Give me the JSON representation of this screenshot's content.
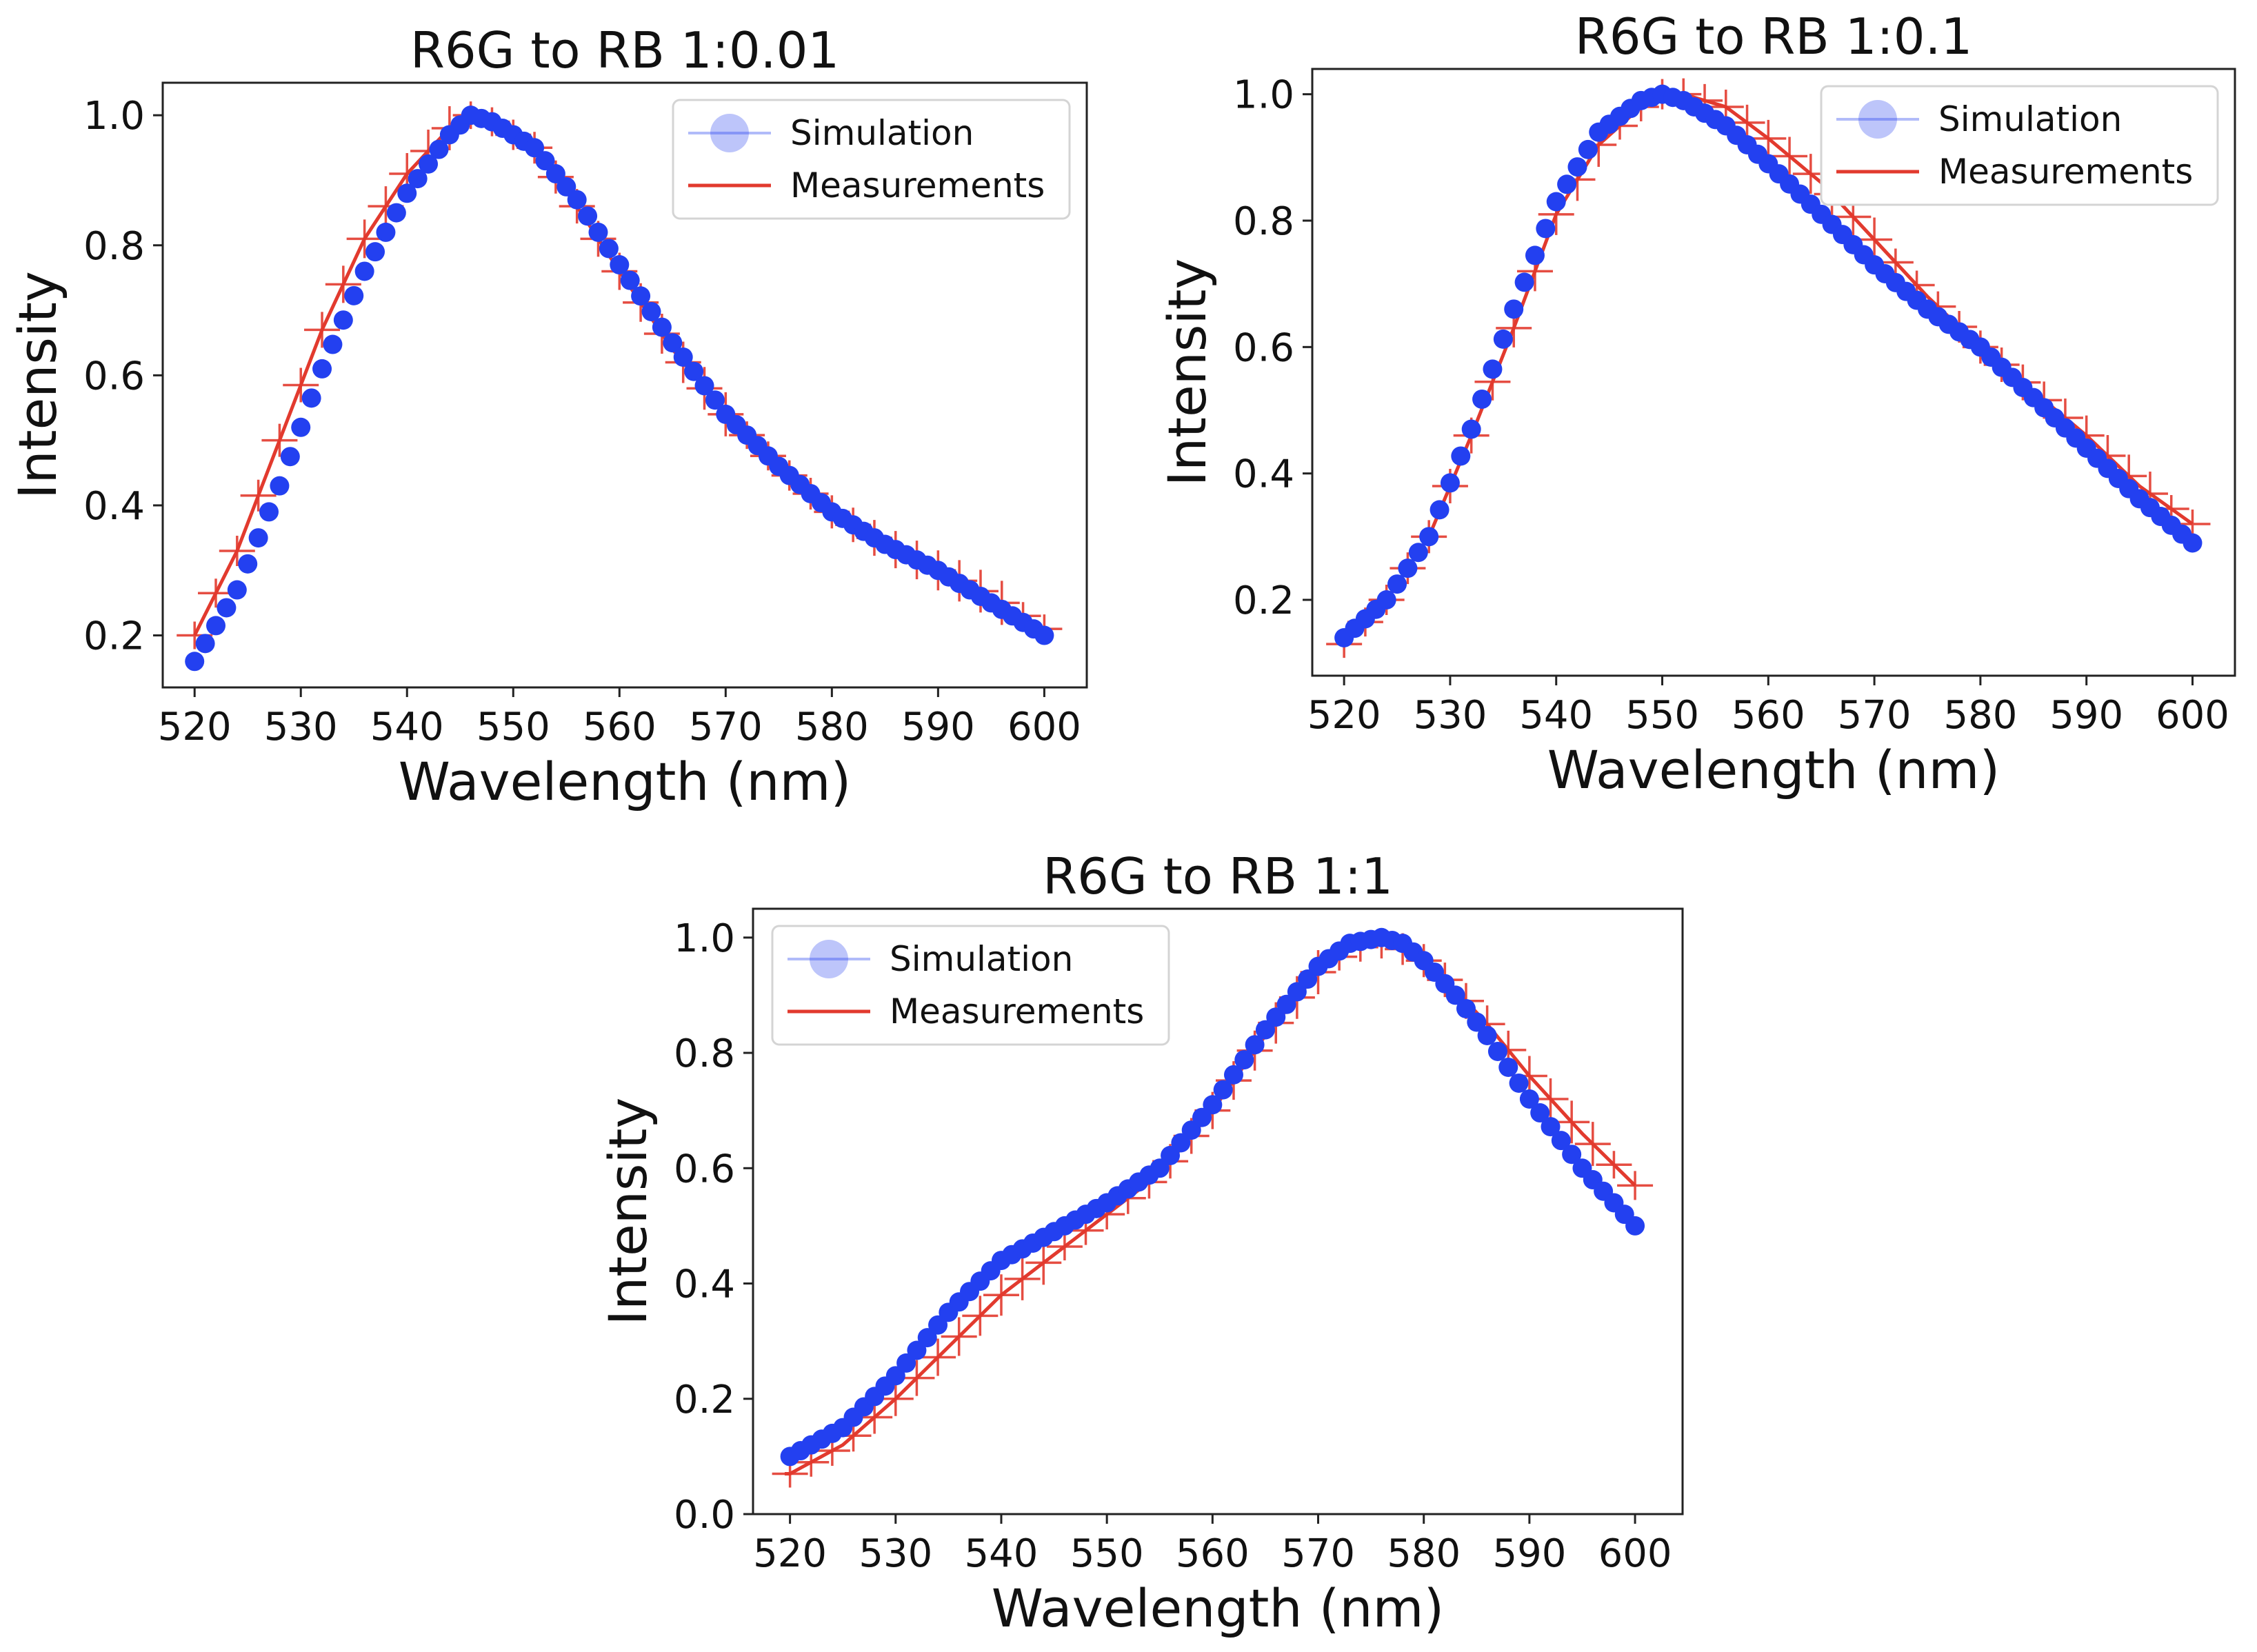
{
  "chart_data": [
    {
      "type": "scatter",
      "title": "R6G to RB 1:0.01",
      "xlabel": "Wavelength (nm)",
      "ylabel": "Intensity",
      "xlim": [
        517,
        604
      ],
      "ylim": [
        0.12,
        1.05
      ],
      "xticks": [
        520,
        530,
        540,
        550,
        560,
        570,
        580,
        590,
        600
      ],
      "yticks": [
        0.2,
        0.4,
        0.6,
        0.8,
        1.0
      ],
      "xtick_labels": [
        "520",
        "530",
        "540",
        "550",
        "560",
        "570",
        "580",
        "590",
        "600"
      ],
      "ytick_labels": [
        "0.2",
        "0.4",
        "0.6",
        "0.8",
        "1.0"
      ],
      "legend_position": "top-right",
      "series": [
        {
          "name": "Simulation",
          "kind": "markers",
          "color": "#2340f0",
          "x": [
            520,
            524,
            528,
            532,
            536,
            540,
            544,
            546,
            548,
            552,
            556,
            560,
            565,
            570,
            575,
            580,
            585,
            590,
            595,
            600
          ],
          "y": [
            0.16,
            0.27,
            0.43,
            0.61,
            0.76,
            0.88,
            0.97,
            1.0,
            0.99,
            0.95,
            0.87,
            0.77,
            0.65,
            0.54,
            0.46,
            0.39,
            0.34,
            0.3,
            0.25,
            0.2
          ]
        },
        {
          "name": "Measurements",
          "kind": "line-with-errorbars",
          "color": "#e23a2e",
          "x": [
            520,
            524,
            528,
            532,
            536,
            540,
            544,
            546,
            548,
            552,
            556,
            560,
            565,
            570,
            575,
            580,
            585,
            590,
            595,
            600
          ],
          "y": [
            0.2,
            0.33,
            0.5,
            0.67,
            0.81,
            0.91,
            0.98,
            1.0,
            0.99,
            0.95,
            0.86,
            0.76,
            0.64,
            0.54,
            0.46,
            0.39,
            0.34,
            0.3,
            0.26,
            0.21
          ]
        }
      ]
    },
    {
      "type": "scatter",
      "title": "R6G to RB 1:0.1",
      "xlabel": "Wavelength (nm)",
      "ylabel": "Intensity",
      "xlim": [
        517,
        604
      ],
      "ylim": [
        0.08,
        1.04
      ],
      "xticks": [
        520,
        530,
        540,
        550,
        560,
        570,
        580,
        590,
        600
      ],
      "yticks": [
        0.2,
        0.4,
        0.6,
        0.8,
        1.0
      ],
      "xtick_labels": [
        "520",
        "530",
        "540",
        "550",
        "560",
        "570",
        "580",
        "590",
        "600"
      ],
      "ytick_labels": [
        "0.2",
        "0.4",
        "0.6",
        "0.8",
        "1.0"
      ],
      "legend_position": "top-right",
      "series": [
        {
          "name": "Simulation",
          "kind": "markers",
          "color": "#2340f0",
          "x": [
            520,
            524,
            528,
            532,
            536,
            540,
            544,
            548,
            550,
            552,
            556,
            560,
            565,
            570,
            575,
            580,
            585,
            590,
            595,
            600
          ],
          "y": [
            0.14,
            0.2,
            0.3,
            0.47,
            0.66,
            0.83,
            0.94,
            0.99,
            1.0,
            0.99,
            0.95,
            0.89,
            0.81,
            0.73,
            0.66,
            0.6,
            0.52,
            0.44,
            0.36,
            0.29
          ]
        },
        {
          "name": "Measurements",
          "kind": "line-with-errorbars",
          "color": "#e23a2e",
          "x": [
            520,
            524,
            528,
            532,
            536,
            540,
            544,
            548,
            550,
            552,
            556,
            560,
            565,
            570,
            575,
            580,
            585,
            590,
            595,
            600
          ],
          "y": [
            0.13,
            0.2,
            0.3,
            0.46,
            0.63,
            0.81,
            0.92,
            0.98,
            1.0,
            1.0,
            0.98,
            0.93,
            0.86,
            0.77,
            0.68,
            0.6,
            0.53,
            0.46,
            0.38,
            0.32
          ]
        }
      ]
    },
    {
      "type": "scatter",
      "title": "R6G to RB 1:1",
      "xlabel": "Wavelength (nm)",
      "ylabel": "Intensity",
      "xlim": [
        516.5,
        604.5
      ],
      "ylim": [
        0.0,
        1.05
      ],
      "xticks": [
        520,
        530,
        540,
        550,
        560,
        570,
        580,
        590,
        600
      ],
      "yticks": [
        0.0,
        0.2,
        0.4,
        0.6,
        0.8,
        1.0
      ],
      "xtick_labels": [
        "520",
        "530",
        "540",
        "550",
        "560",
        "570",
        "580",
        "590",
        "600"
      ],
      "ytick_labels": [
        "0.0",
        "0.2",
        "0.4",
        "0.6",
        "0.8",
        "1.0"
      ],
      "legend_position": "top-left",
      "series": [
        {
          "name": "Simulation",
          "kind": "markers",
          "color": "#2340f0",
          "x": [
            520,
            525,
            530,
            535,
            540,
            545,
            550,
            555,
            560,
            565,
            570,
            573,
            576,
            578,
            580,
            583,
            586,
            590,
            595,
            600
          ],
          "y": [
            0.1,
            0.15,
            0.24,
            0.35,
            0.44,
            0.49,
            0.54,
            0.6,
            0.71,
            0.84,
            0.95,
            0.99,
            1.0,
            0.99,
            0.96,
            0.9,
            0.83,
            0.72,
            0.6,
            0.5
          ]
        },
        {
          "name": "Measurements",
          "kind": "line-with-errorbars",
          "color": "#e23a2e",
          "x": [
            520,
            525,
            530,
            535,
            540,
            545,
            550,
            555,
            560,
            565,
            570,
            573,
            576,
            578,
            580,
            583,
            586,
            590,
            595,
            600
          ],
          "y": [
            0.07,
            0.12,
            0.2,
            0.29,
            0.38,
            0.45,
            0.52,
            0.59,
            0.7,
            0.83,
            0.94,
            0.98,
            0.99,
            0.98,
            0.96,
            0.91,
            0.85,
            0.76,
            0.66,
            0.57
          ]
        }
      ]
    }
  ]
}
